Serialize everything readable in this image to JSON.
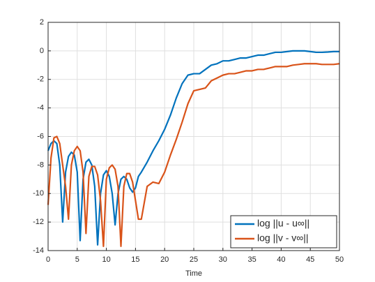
{
  "chart_data": {
    "type": "line",
    "xlabel": "Time",
    "x": [
      0,
      0.5,
      1,
      1.5,
      2,
      2.5,
      3,
      3.5,
      4,
      4.5,
      5,
      5.5,
      6,
      6.5,
      7,
      7.5,
      8,
      8.5,
      9,
      9.5,
      10,
      10.5,
      11,
      11.5,
      12,
      12.5,
      13,
      13.5,
      14,
      14.5,
      15,
      15.5,
      16,
      17,
      18,
      19,
      20,
      21,
      22,
      23,
      24,
      25,
      26,
      27,
      28,
      29,
      30,
      31,
      32,
      33,
      34,
      35,
      36,
      37,
      38,
      39,
      40,
      41,
      42,
      43,
      44,
      45,
      46,
      47,
      48,
      49,
      50
    ],
    "series": [
      {
        "name": "log ||u - u∞||",
        "color": "#0072BD",
        "values": [
          -7.0,
          -6.5,
          -6.3,
          -6.5,
          -8.0,
          -12.0,
          -8.5,
          -7.4,
          -7.1,
          -7.3,
          -8.5,
          -13.3,
          -9.0,
          -7.8,
          -7.6,
          -8.0,
          -9.5,
          -13.6,
          -10.0,
          -8.7,
          -8.4,
          -8.8,
          -10.0,
          -12.2,
          -10.0,
          -9.0,
          -8.8,
          -9.0,
          -9.6,
          -9.9,
          -9.6,
          -8.8,
          -8.5,
          -7.8,
          -7.0,
          -6.3,
          -5.5,
          -4.5,
          -3.3,
          -2.3,
          -1.7,
          -1.6,
          -1.6,
          -1.3,
          -1.0,
          -0.9,
          -0.7,
          -0.7,
          -0.6,
          -0.5,
          -0.5,
          -0.4,
          -0.3,
          -0.3,
          -0.2,
          -0.1,
          -0.1,
          -0.05,
          0,
          0,
          0,
          -0.05,
          -0.1,
          -0.1,
          -0.08,
          -0.05,
          -0.05
        ]
      },
      {
        "name": "log ||v - v∞||",
        "color": "#D95319",
        "values": [
          -10.8,
          -7.5,
          -6.1,
          -6.0,
          -6.5,
          -8.0,
          -9.5,
          -11.8,
          -8.0,
          -7.0,
          -6.7,
          -7.0,
          -8.5,
          -12.8,
          -8.8,
          -8.1,
          -8.1,
          -8.7,
          -10.5,
          -13.7,
          -9.0,
          -8.2,
          -8.0,
          -8.3,
          -9.5,
          -13.7,
          -9.5,
          -8.6,
          -8.6,
          -9.2,
          -10.5,
          -11.8,
          -11.8,
          -9.5,
          -9.2,
          -9.3,
          -8.5,
          -7.3,
          -6.2,
          -5.0,
          -3.7,
          -2.8,
          -2.7,
          -2.6,
          -2.1,
          -1.9,
          -1.7,
          -1.6,
          -1.6,
          -1.5,
          -1.4,
          -1.4,
          -1.3,
          -1.3,
          -1.2,
          -1.1,
          -1.1,
          -1.1,
          -1.0,
          -0.95,
          -0.9,
          -0.9,
          -0.9,
          -0.95,
          -0.95,
          -0.95,
          -0.9
        ]
      }
    ],
    "xlim": [
      0,
      50
    ],
    "xticks": [
      0,
      5,
      10,
      15,
      20,
      25,
      30,
      35,
      40,
      45,
      50
    ],
    "ylim": [
      -14,
      2
    ],
    "yticks": [
      -14,
      -12,
      -10,
      -8,
      -6,
      -4,
      -2,
      0,
      2
    ],
    "grid": true,
    "legend": "lower right"
  }
}
